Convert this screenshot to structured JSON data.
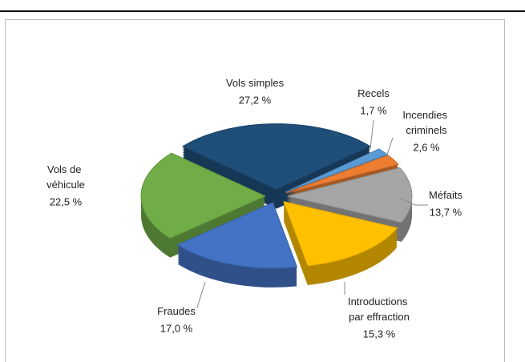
{
  "chart_data": {
    "type": "pie",
    "categories": [
      "Vols simples",
      "Recels",
      "Incendies criminels",
      "Méfaits",
      "Introductions par effraction",
      "Fraudes",
      "Vols de véhicule"
    ],
    "values": [
      27.2,
      1.7,
      2.6,
      13.7,
      15.3,
      17.0,
      22.5
    ],
    "value_labels": [
      "27,2 %",
      "1,7 %",
      "2,6 %",
      "13,7 %",
      "15,3 %",
      "17,0 %",
      "22,5 %"
    ],
    "colors": [
      "#1f4e79",
      "#5b9bd5",
      "#ed7d31",
      "#a5a5a5",
      "#ffc000",
      "#4472c4",
      "#70ad47"
    ]
  }
}
